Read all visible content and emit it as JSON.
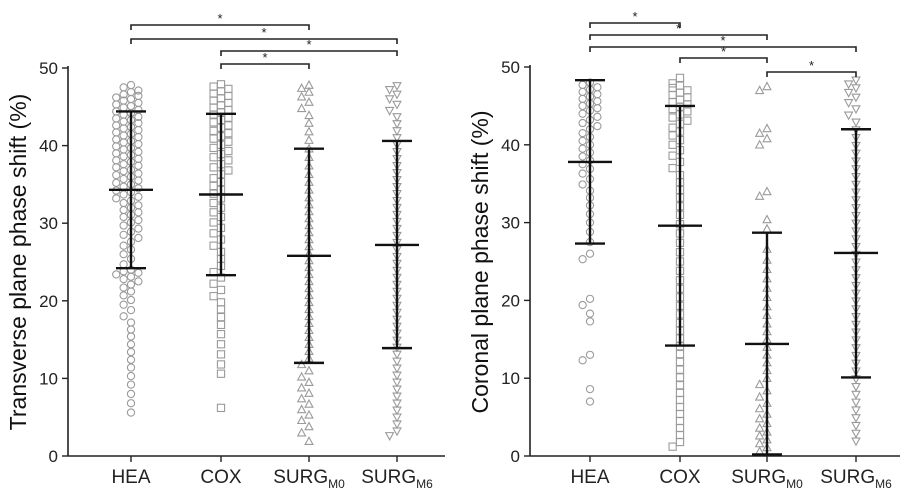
{
  "chart_data": [
    {
      "type": "scatter",
      "ylabel": "Transverse plane phase shift (%)",
      "xlabel": "",
      "ylim": [
        0,
        50
      ],
      "yticks": [
        0,
        10,
        20,
        30,
        40,
        50
      ],
      "categories": [
        {
          "main": "HEA",
          "sub": ""
        },
        {
          "main": "COX",
          "sub": ""
        },
        {
          "main": "SURG",
          "sub": "M0"
        },
        {
          "main": "SURG",
          "sub": "M6"
        }
      ],
      "groups": [
        {
          "marker": "circle",
          "mean": 34.3,
          "sd_low": 24.2,
          "sd_high": 44.4,
          "values": [
            47.8,
            47.5,
            47.1,
            46.9,
            46.6,
            46.4,
            46.2,
            46.0,
            45.8,
            45.5,
            45.3,
            45.1,
            44.9,
            44.6,
            44.4,
            44.2,
            44.0,
            43.7,
            43.5,
            43.3,
            43.1,
            42.9,
            42.6,
            42.4,
            42.2,
            42.0,
            41.7,
            41.5,
            41.3,
            41.1,
            40.8,
            40.6,
            40.4,
            40.2,
            39.9,
            39.7,
            39.5,
            39.2,
            39.0,
            38.8,
            38.6,
            38.3,
            38.1,
            37.9,
            37.6,
            37.4,
            37.2,
            36.9,
            36.7,
            36.4,
            36.2,
            36.0,
            35.7,
            35.5,
            35.2,
            35.0,
            34.7,
            34.5,
            34.2,
            34.0,
            33.7,
            33.4,
            33.2,
            32.9,
            32.6,
            32.3,
            32.0,
            31.7,
            31.4,
            31.1,
            30.8,
            30.4,
            30.1,
            29.7,
            29.3,
            28.9,
            28.5,
            28.1,
            27.6,
            27.1,
            26.6,
            26.0,
            25.4,
            24.7,
            24.0,
            23.8,
            23.6,
            23.4,
            23.1,
            22.8,
            22.5,
            22.1,
            21.7,
            21.2,
            20.7,
            20.1,
            19.5,
            18.8,
            18.0,
            17.2,
            16.3,
            15.4,
            14.4,
            13.4,
            12.4,
            11.4,
            10.3,
            9.2,
            8.0,
            6.8,
            5.6
          ]
        },
        {
          "marker": "square",
          "mean": 33.7,
          "sd_low": 23.3,
          "sd_high": 44.1,
          "values": [
            47.9,
            47.6,
            47.3,
            47.0,
            46.7,
            46.4,
            46.1,
            45.8,
            45.5,
            45.2,
            44.9,
            44.6,
            44.3,
            44.0,
            43.6,
            43.3,
            43.0,
            42.6,
            42.3,
            41.9,
            41.6,
            41.2,
            40.9,
            40.5,
            40.1,
            39.7,
            39.3,
            38.9,
            38.5,
            38.1,
            37.6,
            37.2,
            36.8,
            36.3,
            35.8,
            35.3,
            34.8,
            34.3,
            33.8,
            33.2,
            32.6,
            32.0,
            31.4,
            30.8,
            30.1,
            29.4,
            28.7,
            27.9,
            27.1,
            26.3,
            25.4,
            24.5,
            23.7,
            23.0,
            22.2,
            21.4,
            20.6,
            19.8,
            18.9,
            17.9,
            16.9,
            15.7,
            14.4,
            13.1,
            11.8,
            10.6,
            6.2
          ]
        },
        {
          "marker": "triangle-up",
          "mean": 25.8,
          "sd_low": 12.0,
          "sd_high": 39.6,
          "values": [
            47.8,
            47.4,
            46.9,
            46.3,
            45.6,
            44.8,
            43.9,
            42.9,
            41.8,
            40.7,
            39.6,
            38.5,
            37.4,
            36.3,
            35.3,
            34.3,
            33.3,
            32.4,
            31.5,
            30.6,
            29.7,
            28.8,
            27.9,
            27.0,
            26.1,
            25.2,
            24.3,
            23.4,
            22.5,
            21.6,
            20.7,
            19.8,
            18.9,
            18.0,
            17.1,
            16.2,
            15.3,
            14.4,
            13.5,
            12.6,
            11.8,
            11.0,
            10.2,
            9.5,
            8.8,
            8.1,
            7.4,
            6.7,
            6.0,
            5.3,
            4.6,
            3.8,
            3.0,
            1.9
          ]
        },
        {
          "marker": "triangle-down",
          "mean": 27.2,
          "sd_low": 13.9,
          "sd_high": 40.6,
          "values": [
            47.7,
            47.2,
            46.6,
            46.0,
            45.3,
            44.5,
            43.7,
            42.8,
            41.9,
            41.0,
            40.1,
            39.2,
            38.3,
            37.4,
            36.5,
            35.6,
            34.7,
            33.8,
            32.9,
            32.0,
            31.1,
            30.2,
            29.3,
            28.4,
            27.5,
            26.6,
            25.7,
            24.8,
            23.9,
            23.0,
            22.1,
            21.2,
            20.3,
            19.4,
            18.5,
            17.6,
            16.7,
            15.8,
            14.9,
            14.0,
            13.1,
            12.2,
            11.3,
            10.4,
            9.5,
            8.6,
            7.7,
            6.8,
            5.9,
            5.0,
            4.1,
            3.2,
            2.6
          ]
        }
      ],
      "significance": [
        {
          "from": 0,
          "to": 2,
          "label": "*"
        },
        {
          "from": 0,
          "to": 3,
          "label": "*"
        },
        {
          "from": 1,
          "to": 3,
          "label": "*"
        },
        {
          "from": 1,
          "to": 2,
          "label": "*"
        }
      ]
    },
    {
      "type": "scatter",
      "ylabel": "Coronal plane phase shift (%)",
      "xlabel": "",
      "ylim": [
        0,
        50
      ],
      "yticks": [
        0,
        10,
        20,
        30,
        40,
        50
      ],
      "categories": [
        {
          "main": "HEA",
          "sub": ""
        },
        {
          "main": "COX",
          "sub": ""
        },
        {
          "main": "SURG",
          "sub": "M0"
        },
        {
          "main": "SURG",
          "sub": "M6"
        }
      ],
      "groups": [
        {
          "marker": "circle",
          "mean": 37.8,
          "sd_low": 27.3,
          "sd_high": 48.3,
          "values": [
            48.0,
            47.7,
            47.4,
            47.1,
            46.8,
            46.5,
            46.2,
            45.9,
            45.6,
            45.3,
            45.0,
            44.7,
            44.4,
            44.0,
            43.6,
            43.2,
            42.8,
            42.4,
            42.0,
            41.5,
            41.0,
            40.5,
            40.0,
            39.5,
            39.0,
            38.5,
            38.0,
            37.5,
            36.9,
            36.3,
            35.6,
            34.9,
            34.1,
            33.2,
            32.2,
            31.1,
            30.0,
            28.8,
            27.5,
            26.0,
            25.3,
            20.2,
            19.4,
            18.3,
            17.3,
            13.0,
            12.3,
            8.6,
            7.0
          ]
        },
        {
          "marker": "square",
          "mean": 29.6,
          "sd_low": 14.2,
          "sd_high": 45.0,
          "values": [
            48.6,
            47.9,
            47.6,
            47.3,
            47.0,
            46.7,
            46.4,
            46.1,
            45.8,
            45.5,
            45.2,
            44.9,
            44.6,
            44.3,
            43.9,
            43.5,
            43.1,
            42.7,
            42.2,
            41.7,
            41.2,
            40.6,
            40.0,
            39.3,
            38.6,
            37.8,
            37.0,
            36.1,
            35.2,
            34.2,
            33.2,
            32.1,
            31.0,
            29.8,
            28.6,
            27.4,
            26.2,
            25.0,
            23.8,
            22.6,
            21.5,
            20.4,
            19.3,
            18.2,
            17.1,
            16.1,
            15.1,
            14.1,
            13.1,
            12.1,
            11.1,
            10.1,
            9.1,
            8.1,
            7.2,
            6.3,
            5.4,
            4.5,
            3.6,
            2.7,
            1.8,
            1.2
          ]
        },
        {
          "marker": "triangle-up",
          "mean": 14.4,
          "sd_low": 0.2,
          "sd_high": 28.7,
          "values": [
            47.5,
            47.0,
            42.1,
            41.5,
            40.8,
            40.0,
            34.0,
            33.4,
            30.4,
            29.2,
            26.6,
            25.2,
            24.0,
            22.8,
            21.6,
            20.4,
            19.2,
            18.1,
            17.0,
            16.0,
            15.0,
            14.0,
            13.0,
            12.0,
            11.0,
            10.0,
            9.2,
            8.4,
            7.6,
            6.8,
            6.1,
            5.4,
            4.8,
            4.2,
            3.6,
            3.1,
            2.6,
            2.1,
            1.6,
            1.1,
            0.6
          ]
        },
        {
          "marker": "triangle-down",
          "mean": 26.1,
          "sd_low": 10.1,
          "sd_high": 42.0,
          "values": [
            48.3,
            47.8,
            47.3,
            46.7,
            46.1,
            45.4,
            44.6,
            43.8,
            42.9,
            41.9,
            40.9,
            39.9,
            38.9,
            37.9,
            36.9,
            35.9,
            34.9,
            33.9,
            32.9,
            31.9,
            30.9,
            29.9,
            28.9,
            27.9,
            26.9,
            25.9,
            24.9,
            23.9,
            22.9,
            21.9,
            20.9,
            19.9,
            18.9,
            17.9,
            16.9,
            15.9,
            14.9,
            13.9,
            12.9,
            11.9,
            10.9,
            9.9,
            8.9,
            7.9,
            6.9,
            5.9,
            4.9,
            3.9,
            2.9,
            1.9
          ]
        }
      ],
      "significance": [
        {
          "from": 0,
          "to": 1,
          "label": "*"
        },
        {
          "from": 0,
          "to": 2,
          "label": "*"
        },
        {
          "from": 0,
          "to": 3,
          "label": "*"
        },
        {
          "from": 1,
          "to": 2,
          "label": "*"
        },
        {
          "from": 2,
          "to": 3,
          "label": "*"
        }
      ]
    }
  ]
}
